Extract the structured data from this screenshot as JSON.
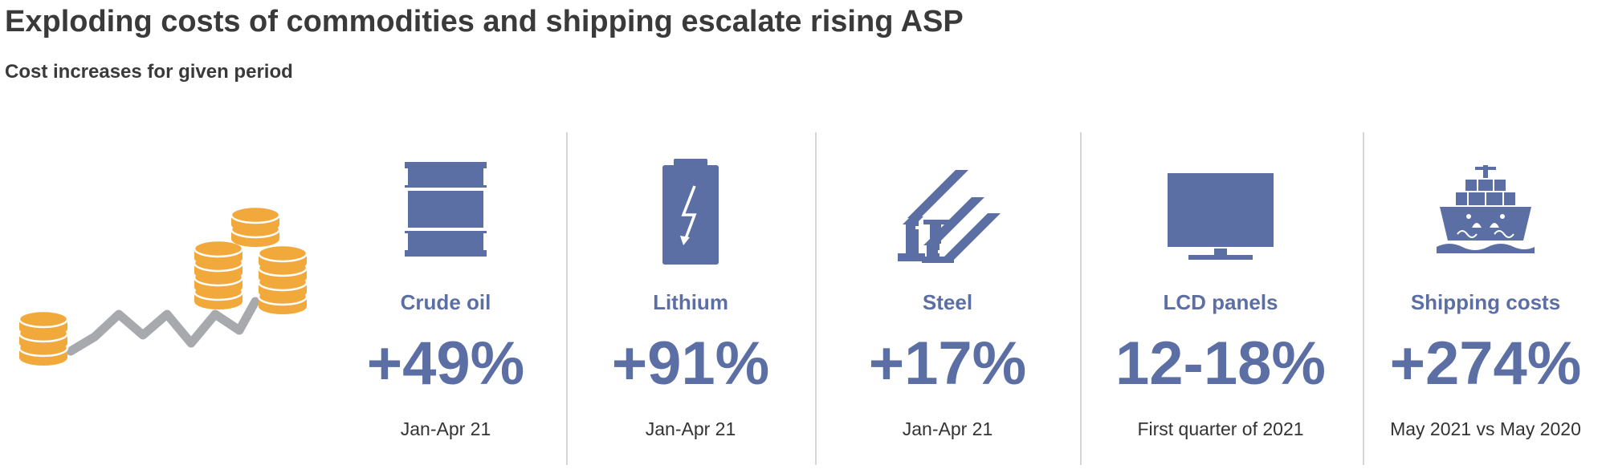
{
  "title": "Exploding costs of commodities and shipping escalate rising ASP",
  "subtitle": "Cost increases for given period",
  "colors": {
    "accent": "#5c6fa5",
    "coin": "#f2a93b",
    "coin_rim": "#ffffff",
    "trend_line": "#a7a9ac",
    "text": "#333333",
    "divider": "#d6d6d6"
  },
  "hero_illustration": {
    "icon": "coin-stacks-rising-trend-icon"
  },
  "chart_data": {
    "type": "table",
    "title": "Exploding costs of commodities and shipping escalate rising ASP",
    "subtitle": "Cost increases for given period",
    "items": [
      {
        "label": "Crude oil",
        "value": "+49%",
        "period": "Jan-Apr 21",
        "icon": "oil-barrel-icon"
      },
      {
        "label": "Lithium",
        "value": "+91%",
        "period": "Jan-Apr 21",
        "icon": "battery-icon"
      },
      {
        "label": "Steel",
        "value": "+17%",
        "period": "Jan-Apr 21",
        "icon": "steel-beams-icon"
      },
      {
        "label": "LCD panels",
        "value": "12-18%",
        "period": "First quarter of 2021",
        "icon": "monitor-icon"
      },
      {
        "label": "Shipping costs",
        "value": "+274%",
        "period": "May 2021 vs May 2020",
        "icon": "cargo-ship-icon"
      }
    ]
  }
}
